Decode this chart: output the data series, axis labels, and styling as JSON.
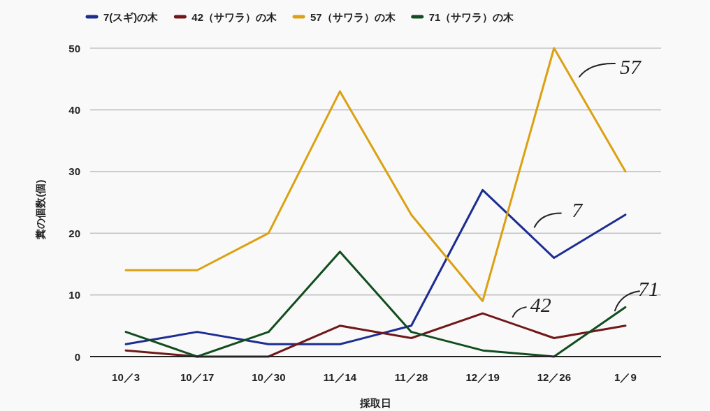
{
  "chart_data": {
    "type": "line",
    "xlabel": "採取日",
    "ylabel": "糞の個数(個)",
    "categories": [
      "10／3",
      "10／17",
      "10／30",
      "11／14",
      "11／28",
      "12／19",
      "12／26",
      "1／9"
    ],
    "series": [
      {
        "name": "7(スギ)の木",
        "color": "#1c2d91",
        "values": [
          2,
          4,
          2,
          2,
          5,
          27,
          16,
          23
        ]
      },
      {
        "name": "42（サワラ）の木",
        "color": "#701818",
        "values": [
          1,
          0,
          0,
          5,
          3,
          7,
          3,
          5
        ]
      },
      {
        "name": "57（サワラ）の木",
        "color": "#dba112",
        "values": [
          14,
          14,
          20,
          43,
          23,
          9,
          50,
          30
        ]
      },
      {
        "name": "71（サワラ）の木",
        "color": "#114d1e",
        "values": [
          4,
          0,
          4,
          17,
          4,
          1,
          0,
          8
        ]
      }
    ],
    "ylim": [
      0,
      50
    ],
    "yticks": [
      0,
      10,
      20,
      30,
      40,
      50
    ],
    "grid": "y",
    "legend": "top",
    "line_style": "solid",
    "annotations": [
      "57",
      {
        "text": "7",
        "x": "12／26",
        "y": 16
      },
      {
        "text": "42",
        "x": "12／19",
        "y": 7
      },
      {
        "text": "71",
        "x": "1／9",
        "y": 8
      }
    ]
  }
}
